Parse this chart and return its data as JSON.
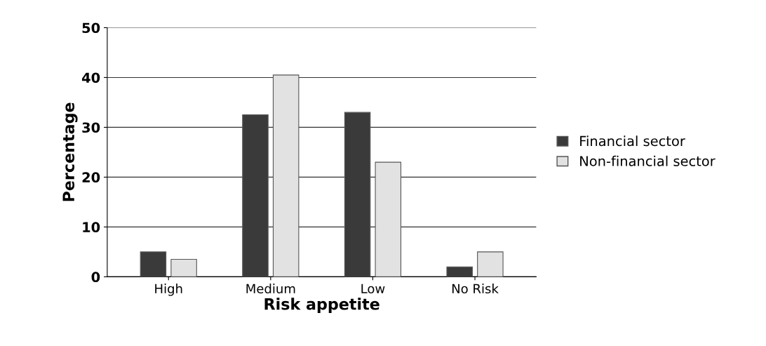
{
  "chart_data": {
    "type": "bar",
    "xlabel": "Risk appetite",
    "ylabel": "Percentage",
    "categories": [
      "High",
      "Medium",
      "Low",
      "No Risk"
    ],
    "series": [
      {
        "name": "Financial sector",
        "color": "#3a3a3a",
        "values": [
          5,
          32.5,
          33,
          2
        ]
      },
      {
        "name": "Non-financial sector",
        "color": "#e2e2e2",
        "values": [
          3.5,
          40.5,
          23,
          5
        ]
      }
    ],
    "ylim": [
      0,
      50
    ],
    "yticks": [
      0,
      10,
      20,
      30,
      40,
      50
    ],
    "grid": "y",
    "legend": "right"
  }
}
